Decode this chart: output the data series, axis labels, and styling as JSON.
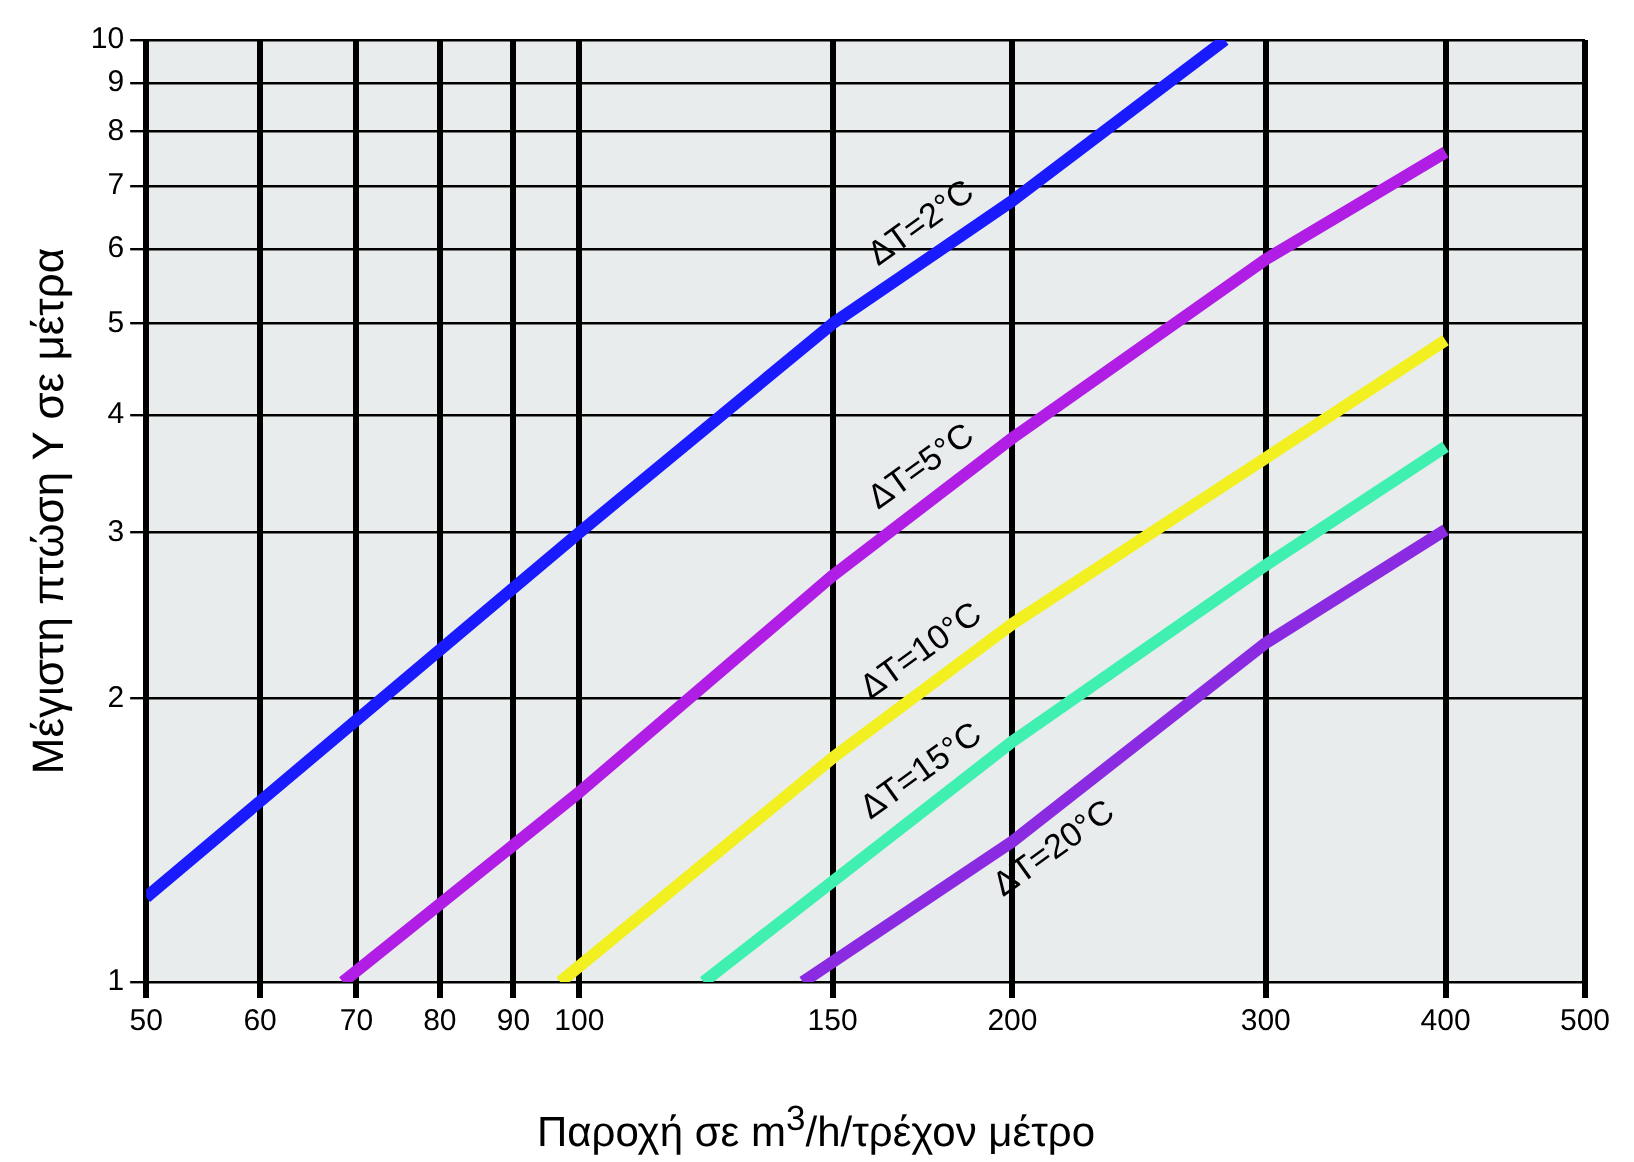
{
  "chart_data": {
    "type": "line",
    "xlabel": "Παροχή σε m$^{3}$/h/τρέχον μέτρο",
    "ylabel": "Μέγιστη πτώση Υ σε μέτρα",
    "log": "xy",
    "grid": true,
    "legend": false,
    "marker": "none",
    "line_style": "solid",
    "xlim": [
      50,
      500
    ],
    "xticks": [
      50,
      60,
      70,
      80,
      90,
      100,
      150,
      200,
      300,
      400,
      500
    ],
    "ylim": [
      1,
      10
    ],
    "yticks": [
      1,
      2,
      3,
      4,
      5,
      6,
      7,
      8,
      9,
      10
    ],
    "series": [
      {
        "name": "ΔT=2°C",
        "color": "#1a1aff",
        "x": [
          50,
          100,
          150,
          200,
          281
        ],
        "values": [
          1.23,
          3.0,
          5.0,
          6.75,
          10
        ]
      },
      {
        "name": "ΔT=5°C",
        "color": "#b01ee6",
        "x": [
          68.5,
          100,
          150,
          200,
          300,
          400
        ],
        "values": [
          1,
          1.59,
          2.7,
          3.78,
          5.85,
          7.6
        ]
      },
      {
        "name": "ΔT=10°C",
        "color": "#f2f020",
        "x": [
          97,
          150,
          200,
          300,
          400
        ],
        "values": [
          1,
          1.73,
          2.4,
          3.6,
          4.8
        ]
      },
      {
        "name": "ΔT=15°C",
        "color": "#40f0b0",
        "x": [
          122,
          200,
          300,
          400
        ],
        "values": [
          1,
          1.8,
          2.77,
          3.7
        ]
      },
      {
        "name": "ΔT=20°C",
        "color": "#8a2be2",
        "x": [
          143,
          200,
          300,
          400
        ],
        "values": [
          1,
          1.41,
          2.29,
          3.02
        ]
      }
    ]
  }
}
